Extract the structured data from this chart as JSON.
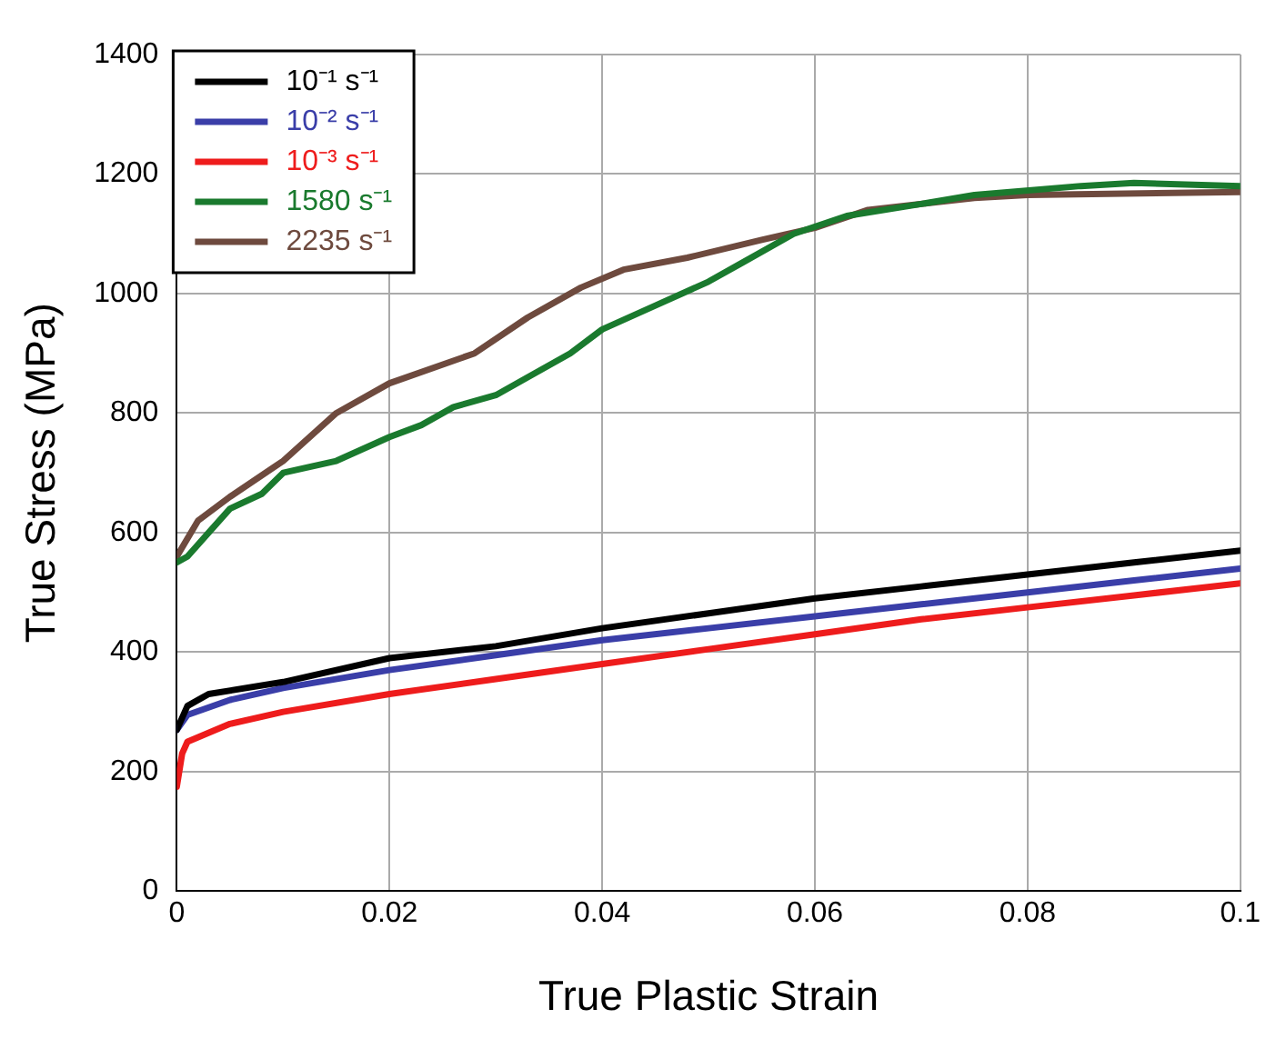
{
  "chart_data": {
    "type": "line",
    "xlabel": "True Plastic Strain",
    "ylabel": "True Stress (MPa)",
    "xlim": [
      0,
      0.1
    ],
    "xticks": [
      0,
      0.02,
      0.04,
      0.06,
      0.08,
      0.1
    ],
    "ylim": [
      0,
      1400
    ],
    "yticks": [
      0,
      200,
      400,
      600,
      800,
      1000,
      1200,
      1400
    ],
    "grid": true,
    "legend": "top left",
    "marker": "none",
    "line_style": "solid",
    "series": [
      {
        "name": "10⁻¹ s⁻¹",
        "color": "#000000",
        "x": [
          0,
          0.001,
          0.003,
          0.01,
          0.02,
          0.03,
          0.04,
          0.05,
          0.06,
          0.07,
          0.08,
          0.09,
          0.1
        ],
        "values": [
          270,
          310,
          330,
          350,
          390,
          410,
          440,
          465,
          490,
          510,
          530,
          550,
          570
        ]
      },
      {
        "name": "10⁻² s⁻¹",
        "color": "#3a3ea8",
        "x": [
          0,
          0.001,
          0.005,
          0.01,
          0.02,
          0.03,
          0.04,
          0.05,
          0.06,
          0.07,
          0.08,
          0.09,
          0.1
        ],
        "values": [
          270,
          295,
          320,
          340,
          370,
          395,
          420,
          440,
          460,
          480,
          500,
          520,
          540
        ]
      },
      {
        "name": "10⁻³ s⁻¹",
        "color": "#ee1c1c",
        "x": [
          0,
          0.0005,
          0.001,
          0.005,
          0.01,
          0.02,
          0.03,
          0.04,
          0.05,
          0.06,
          0.07,
          0.08,
          0.09,
          0.1
        ],
        "values": [
          175,
          230,
          250,
          280,
          300,
          330,
          355,
          380,
          405,
          430,
          455,
          475,
          495,
          515
        ]
      },
      {
        "name": "1580 s⁻¹",
        "color": "#1a7a2e",
        "x": [
          0,
          0.001,
          0.003,
          0.005,
          0.008,
          0.01,
          0.015,
          0.02,
          0.023,
          0.026,
          0.03,
          0.033,
          0.037,
          0.04,
          0.045,
          0.05,
          0.053,
          0.058,
          0.063,
          0.07,
          0.075,
          0.085,
          0.09,
          0.1
        ],
        "values": [
          550,
          560,
          600,
          640,
          665,
          700,
          720,
          760,
          780,
          810,
          830,
          860,
          900,
          940,
          980,
          1020,
          1050,
          1100,
          1130,
          1150,
          1165,
          1180,
          1185,
          1180
        ]
      },
      {
        "name": "2235 s⁻¹",
        "color": "#6e4a3e",
        "x": [
          0,
          0.002,
          0.005,
          0.01,
          0.015,
          0.02,
          0.028,
          0.033,
          0.038,
          0.042,
          0.048,
          0.055,
          0.06,
          0.065,
          0.075,
          0.08,
          0.1
        ],
        "values": [
          560,
          620,
          660,
          720,
          800,
          850,
          900,
          960,
          1010,
          1040,
          1060,
          1090,
          1110,
          1140,
          1160,
          1165,
          1170
        ]
      }
    ]
  }
}
